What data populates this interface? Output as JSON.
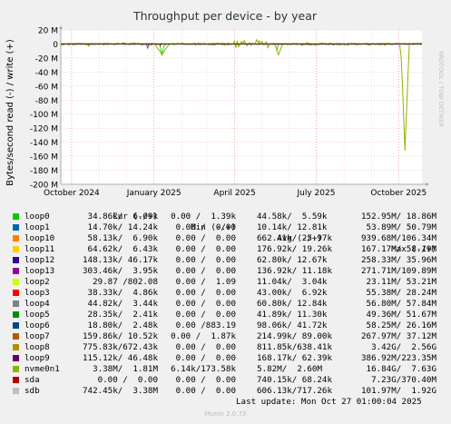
{
  "chart_data": {
    "type": "line",
    "title": "Throughput per device - by year",
    "ylabel": "Bytes/second read (-) / write (+)",
    "side_label": "RRDTOOL / TOBI OETIKER",
    "ylim": [
      -200,
      20
    ],
    "yticks": [
      {
        "v": 20,
        "label": "20 M"
      },
      {
        "v": 0,
        "label": "0"
      },
      {
        "v": -20,
        "label": "-20 M"
      },
      {
        "v": -40,
        "label": "-40 M"
      },
      {
        "v": -60,
        "label": "-60 M"
      },
      {
        "v": -80,
        "label": "-80 M"
      },
      {
        "v": -100,
        "label": "-100 M"
      },
      {
        "v": -120,
        "label": "-120 M"
      },
      {
        "v": -140,
        "label": "-140 M"
      },
      {
        "v": -160,
        "label": "-160 M"
      },
      {
        "v": -180,
        "label": "-180 M"
      },
      {
        "v": -200,
        "label": "-200 M"
      }
    ],
    "xlim": [
      "2024-09-19",
      "2025-10-27"
    ],
    "xticks": [
      {
        "date": "2024-10-01",
        "label": "October 2024"
      },
      {
        "date": "2025-01-01",
        "label": "January 2025"
      },
      {
        "date": "2025-04-01",
        "label": "April 2025"
      },
      {
        "date": "2025-07-01",
        "label": "July 2025"
      },
      {
        "date": "2025-10-01",
        "label": "October 2025"
      }
    ],
    "grid": true,
    "columns": [
      "Cur (-/+)",
      "Min (-/+)",
      "Avg (-/+)",
      "Max (-/+)"
    ],
    "series": [
      {
        "name": "loop0",
        "color": "#00cc00",
        "cur": "34.86k/  6.09k",
        "min": "0.00 /  1.39k",
        "avg": "44.58k/  5.59k",
        "max": "152.95M/ 18.86M"
      },
      {
        "name": "loop1",
        "color": "#0066b3",
        "cur": "14.70k/ 14.24k",
        "min": "0.00 /  0.00",
        "avg": "10.14k/ 12.81k",
        "max": "53.89M/ 50.79M"
      },
      {
        "name": "loop10",
        "color": "#ff8000",
        "cur": "58.13k/  6.90k",
        "min": "0.00 /  0.00",
        "avg": "662.41k/ 25.97k",
        "max": "939.68M/106.34M"
      },
      {
        "name": "loop11",
        "color": "#ffcc00",
        "cur": "64.62k/  6.43k",
        "min": "0.00 /  0.00",
        "avg": "176.92k/ 19.26k",
        "max": "167.17M/ 58.19M"
      },
      {
        "name": "loop12",
        "color": "#330099",
        "cur": "148.13k/ 46.17k",
        "min": "0.00 /  0.00",
        "avg": "62.80k/ 12.67k",
        "max": "258.33M/ 35.96M"
      },
      {
        "name": "loop13",
        "color": "#990099",
        "cur": "303.46k/  3.95k",
        "min": "0.00 /  0.00",
        "avg": "136.92k/ 11.18k",
        "max": "271.71M/109.89M"
      },
      {
        "name": "loop2",
        "color": "#ccff00",
        "cur": "29.87 /802.08",
        "min": "0.00 /  1.09",
        "avg": "11.04k/  3.04k",
        "max": "23.11M/ 53.21M"
      },
      {
        "name": "loop3",
        "color": "#ff0000",
        "cur": "38.33k/  4.86k",
        "min": "0.00 /  0.00",
        "avg": "43.00k/  6.92k",
        "max": "55.38M/ 28.24M"
      },
      {
        "name": "loop4",
        "color": "#808080",
        "cur": "44.82k/  3.44k",
        "min": "0.00 /  0.00",
        "avg": "60.80k/ 12.84k",
        "max": "56.80M/ 57.84M"
      },
      {
        "name": "loop5",
        "color": "#008f00",
        "cur": "28.35k/  2.41k",
        "min": "0.00 /  0.00",
        "avg": "41.89k/ 11.30k",
        "max": "49.36M/ 51.67M"
      },
      {
        "name": "loop6",
        "color": "#00487d",
        "cur": "18.80k/  2.48k",
        "min": "0.00 /883.19",
        "avg": "98.06k/ 41.72k",
        "max": "58.25M/ 26.16M"
      },
      {
        "name": "loop7",
        "color": "#b35a00",
        "cur": "159.86k/ 10.52k",
        "min": "0.00 /  1.87k",
        "avg": "214.99k/ 89.00k",
        "max": "267.97M/ 37.12M"
      },
      {
        "name": "loop8",
        "color": "#b38f00",
        "cur": "775.83k/672.43k",
        "min": "0.00 /  0.00",
        "avg": "811.85k/638.41k",
        "max": "3.42G/  2.56G"
      },
      {
        "name": "loop9",
        "color": "#6b006b",
        "cur": "115.12k/ 46.48k",
        "min": "0.00 /  0.00",
        "avg": "168.17k/ 62.39k",
        "max": "386.92M/223.35M"
      },
      {
        "name": "nvme0n1",
        "color": "#8fb300",
        "cur": "3.38M/  1.81M",
        "min": "6.14k/173.58k",
        "avg": "5.82M/  2.60M",
        "max": "16.84G/  7.63G"
      },
      {
        "name": "sda",
        "color": "#b30000",
        "cur": "0.00 /  0.00",
        "min": "0.00 /  0.00",
        "avg": "740.15k/ 68.24k",
        "max": "7.23G/370.40M"
      },
      {
        "name": "sdb",
        "color": "#bebebe",
        "cur": "742.45k/  3.38M",
        "min": "0.00 /  0.00",
        "avg": "606.13k/717.26k",
        "max": "101.97M/  1.92G"
      }
    ],
    "last_update": "Last update: Mon Oct 27 01:00:04 2025",
    "footer": "Munin 2.0.73"
  }
}
